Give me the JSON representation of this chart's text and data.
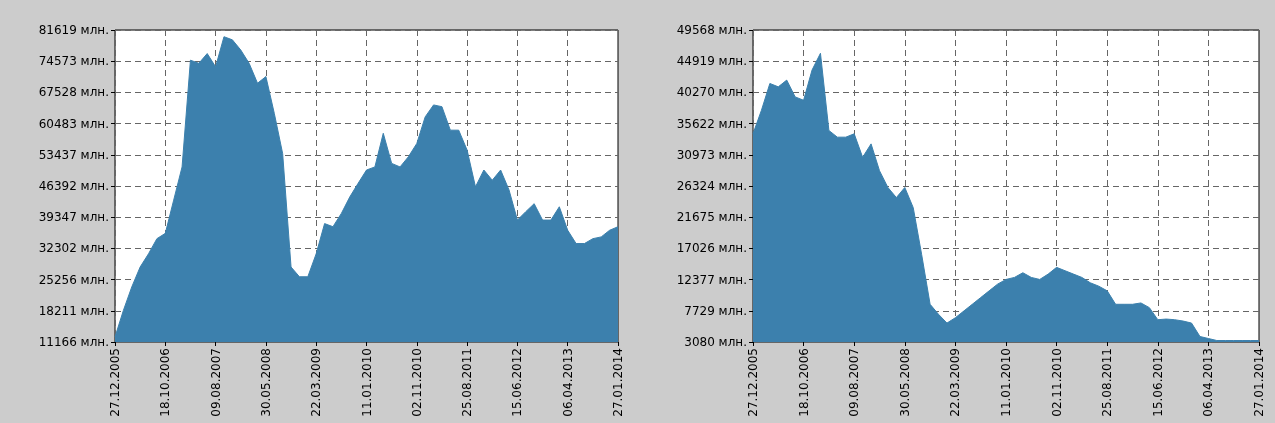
{
  "chart_data": [
    {
      "type": "area",
      "color": "#3c80ad",
      "grid": true,
      "categories": [
        "27.12.2005",
        null,
        null,
        null,
        null,
        null,
        "18.10.2006",
        null,
        null,
        null,
        null,
        null,
        "09.08.2007",
        null,
        null,
        null,
        null,
        null,
        "30.05.2008",
        null,
        null,
        null,
        null,
        null,
        "22.03.2009",
        null,
        null,
        null,
        null,
        null,
        "11.01.2010",
        null,
        null,
        null,
        null,
        null,
        "02.11.2010",
        null,
        null,
        null,
        null,
        null,
        "25.08.2011",
        null,
        null,
        null,
        null,
        null,
        "15.06.2012",
        null,
        null,
        null,
        null,
        null,
        "06.04.2013",
        null,
        null,
        null,
        null,
        null,
        "27.01.2014"
      ],
      "values": [
        12300,
        18300,
        23600,
        28100,
        31100,
        34500,
        35700,
        43200,
        50700,
        74800,
        74100,
        76300,
        73300,
        80100,
        79400,
        77100,
        74100,
        69600,
        71100,
        62800,
        53700,
        28100,
        25900,
        25900,
        31100,
        37900,
        37200,
        40200,
        43900,
        47000,
        50000,
        50700,
        58300,
        51500,
        50700,
        53000,
        56000,
        62000,
        64700,
        64300,
        59000,
        59000,
        54500,
        46200,
        50000,
        47700,
        50000,
        45500,
        38700,
        40600,
        42400,
        38700,
        38700,
        41700,
        36400,
        33400,
        33400,
        34500,
        34900,
        36400,
        37200
      ],
      "ylim": [
        11166,
        81619
      ],
      "yticks": [
        {
          "value": 11166,
          "label": "11166 млн."
        },
        {
          "value": 18211,
          "label": "18211 млн."
        },
        {
          "value": 25256,
          "label": "25256 млн."
        },
        {
          "value": 32302,
          "label": "32302 млн."
        },
        {
          "value": 39347,
          "label": "39347 млн."
        },
        {
          "value": 46392,
          "label": "46392 млн."
        },
        {
          "value": 53437,
          "label": "53437 млн."
        },
        {
          "value": 60483,
          "label": "60483 млн."
        },
        {
          "value": 67528,
          "label": "67528 млн."
        },
        {
          "value": 74573,
          "label": "74573 млн."
        },
        {
          "value": 81619,
          "label": "81619 млн."
        }
      ]
    },
    {
      "type": "area",
      "color": "#3c80ad",
      "grid": true,
      "categories": [
        "27.12.2005",
        null,
        null,
        null,
        null,
        null,
        "18.10.2006",
        null,
        null,
        null,
        null,
        null,
        "09.08.2007",
        null,
        null,
        null,
        null,
        null,
        "30.05.2008",
        null,
        null,
        null,
        null,
        null,
        "22.03.2009",
        null,
        null,
        null,
        null,
        null,
        "11.01.2010",
        null,
        null,
        null,
        null,
        null,
        "02.11.2010",
        null,
        null,
        null,
        null,
        null,
        "25.08.2011",
        null,
        null,
        null,
        null,
        null,
        "15.06.2012",
        null,
        null,
        null,
        null,
        null,
        "06.04.2013",
        null,
        null,
        null,
        null,
        null,
        "27.01.2014"
      ],
      "values": [
        34100,
        37600,
        41600,
        41100,
        42100,
        39600,
        39100,
        43600,
        46100,
        34600,
        33600,
        33600,
        34100,
        30600,
        32600,
        28600,
        26100,
        24600,
        26100,
        23100,
        16100,
        8700,
        7200,
        5900,
        6700,
        7700,
        8700,
        9700,
        10700,
        11700,
        12400,
        12700,
        13400,
        12700,
        12400,
        13200,
        14200,
        13700,
        13200,
        12700,
        11900,
        11400,
        10700,
        8700,
        8700,
        8700,
        8900,
        8200,
        6400,
        6500,
        6400,
        6200,
        5900,
        3900,
        3600,
        3300,
        3300,
        3300,
        3300,
        3300,
        3300
      ],
      "ylim": [
        3080,
        49568
      ],
      "yticks": [
        {
          "value": 3080,
          "label": "3080 млн."
        },
        {
          "value": 7729,
          "label": "7729 млн."
        },
        {
          "value": 12377,
          "label": "12377 млн."
        },
        {
          "value": 17026,
          "label": "17026 млн."
        },
        {
          "value": 21675,
          "label": "21675 млн."
        },
        {
          "value": 26324,
          "label": "26324 млн."
        },
        {
          "value": 30973,
          "label": "30973 млн."
        },
        {
          "value": 35622,
          "label": "35622 млн."
        },
        {
          "value": 40270,
          "label": "40270 млн."
        },
        {
          "value": 44919,
          "label": "44919 млн."
        },
        {
          "value": 49568,
          "label": "49568 млн."
        }
      ]
    }
  ]
}
